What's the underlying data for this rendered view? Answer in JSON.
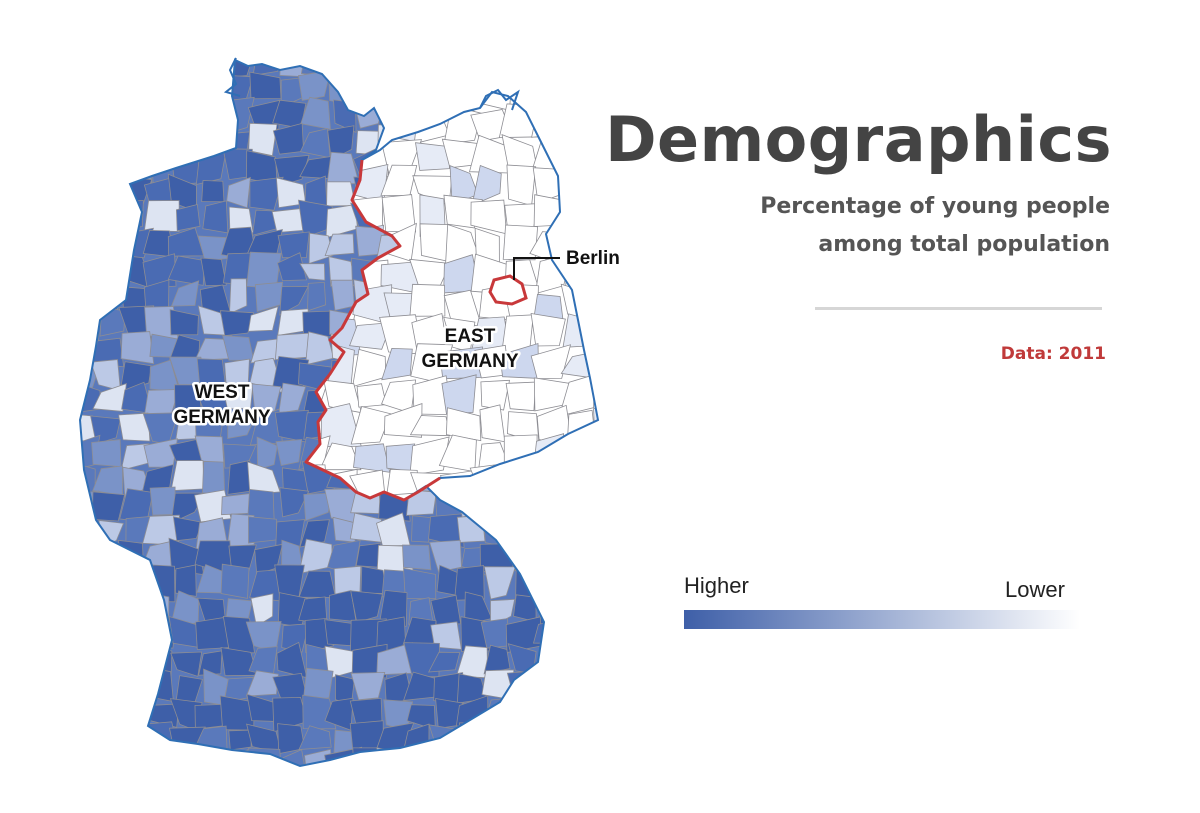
{
  "header": {
    "title": "Demographics",
    "subtitle_line1": "Percentage of young people",
    "subtitle_line2": "among total population",
    "data_year": "Data: 2011"
  },
  "map": {
    "labels": {
      "west": [
        "WEST",
        "GERMANY"
      ],
      "east": [
        "EAST",
        "GERMANY"
      ],
      "berlin": "Berlin"
    },
    "colors": {
      "higher": "#3e5fa8",
      "lower": "#e8ecf6",
      "east_fill": "#ffffff",
      "inner_border": "#8d8d93",
      "outer_border": "#2f6fb5",
      "inner_german_border": "#c8383a"
    },
    "district_shading": "West German districts shaded mostly in mid to dark blue (higher share); East German districts mostly white (lower share) with a few light-blue districts."
  },
  "legend": {
    "higher_label": "Higher",
    "lower_label": "Lower",
    "gradient_from": "#3e5fa8",
    "gradient_to": "#ffffff"
  }
}
